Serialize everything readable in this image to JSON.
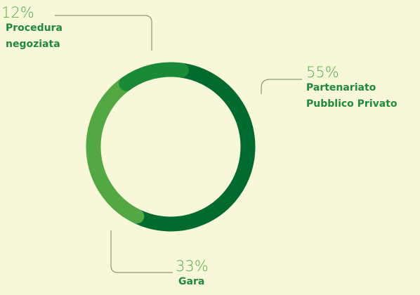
{
  "chart_data": {
    "type": "donut",
    "categories": [
      "Partenariato Pubblico Privato",
      "Gara",
      "Procedura negoziata"
    ],
    "values": [
      55,
      33,
      12
    ],
    "value_labels": [
      "55%",
      "33%",
      "12%"
    ],
    "colors": [
      "#006b2f",
      "#52a843",
      "#1a8a37"
    ]
  }
}
